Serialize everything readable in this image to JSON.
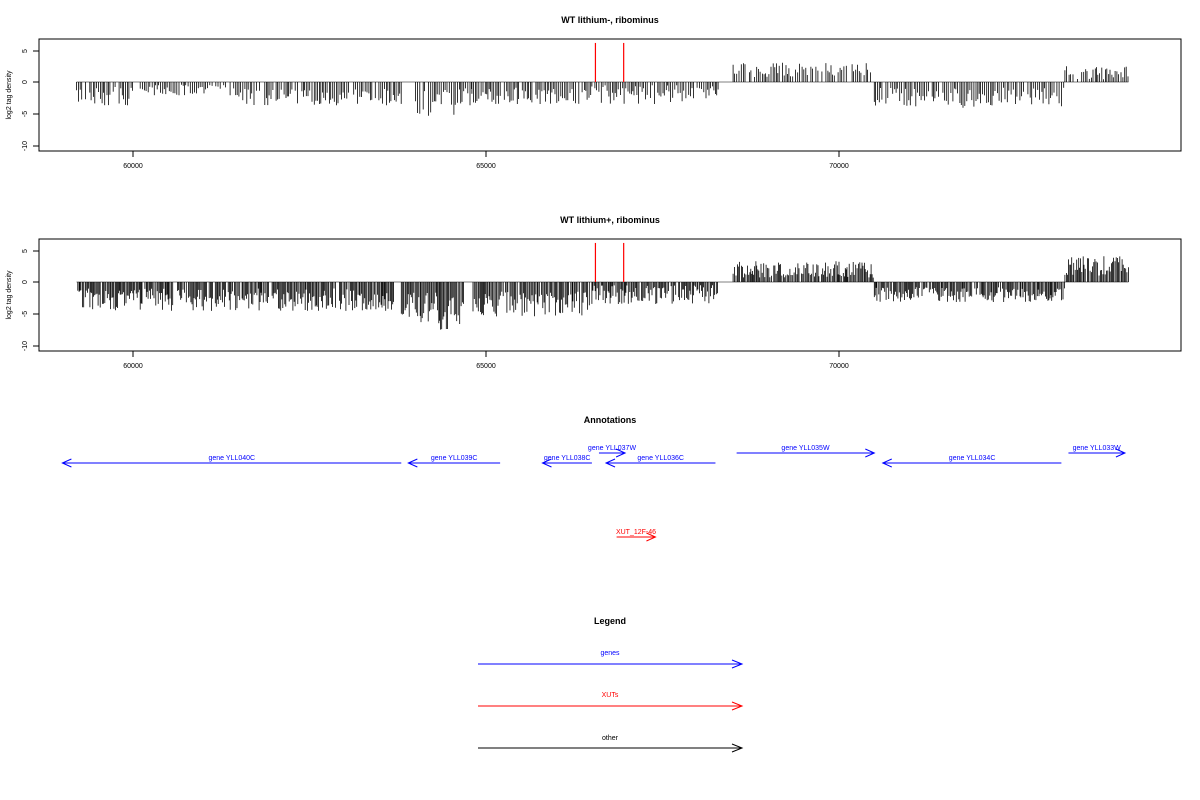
{
  "chart_data": [
    {
      "type": "bar",
      "title": "WT lithium-, ribominus",
      "ylabel": "log2 tag density",
      "xlabel": "",
      "xlim": [
        58500,
        74800
      ],
      "ylim": [
        -11,
        7
      ],
      "x_ticks": [
        60000,
        65000,
        70000
      ],
      "x_tick_labels": [
        "60000",
        "65000",
        "70000"
      ],
      "y_ticks": [
        5,
        0,
        -5,
        -10
      ],
      "y_tick_labels": [
        "5",
        "0",
        "-5",
        "-10"
      ],
      "grid": false,
      "segments": [
        {
          "from": 59200,
          "to": 60000,
          "sign": -1,
          "mean": 2.2,
          "spread": 1.5
        },
        {
          "from": 60000,
          "to": 61500,
          "sign": -1,
          "mean": 1.3,
          "spread": 0.9
        },
        {
          "from": 61500,
          "to": 63800,
          "sign": -1,
          "mean": 2.4,
          "spread": 1.3
        },
        {
          "from": 64000,
          "to": 64800,
          "sign": -1,
          "mean": 3.2,
          "spread": 2.2
        },
        {
          "from": 64800,
          "to": 66500,
          "sign": -1,
          "mean": 2.2,
          "spread": 1.3
        },
        {
          "from": 66500,
          "to": 67800,
          "sign": -1,
          "mean": 2.0,
          "spread": 1.5
        },
        {
          "from": 67800,
          "to": 68300,
          "sign": -1,
          "mean": 1.6,
          "spread": 1.0
        },
        {
          "from": 68500,
          "to": 70500,
          "sign": 1,
          "mean": 2.0,
          "spread": 1.2
        },
        {
          "from": 70500,
          "to": 73200,
          "sign": -1,
          "mean": 2.5,
          "spread": 1.6
        },
        {
          "from": 73200,
          "to": 74100,
          "sign": 1,
          "mean": 1.6,
          "spread": 1.2
        }
      ],
      "highlight_bars": [
        {
          "x": 66550,
          "y": 6.2,
          "color": "#ff0000"
        },
        {
          "x": 66950,
          "y": 6.2,
          "color": "#ff0000"
        }
      ]
    },
    {
      "type": "bar",
      "title": "WT lithium+, ribominus",
      "ylabel": "log2 tag density",
      "xlabel": "",
      "xlim": [
        58500,
        74800
      ],
      "ylim": [
        -11,
        7
      ],
      "x_ticks": [
        60000,
        65000,
        70000
      ],
      "x_tick_labels": [
        "60000",
        "65000",
        "70000"
      ],
      "y_ticks": [
        5,
        0,
        -5,
        -10
      ],
      "y_tick_labels": [
        "5",
        "0",
        "-5",
        "-10"
      ],
      "grid": false,
      "segments": [
        {
          "from": 59200,
          "to": 63700,
          "sign": -1,
          "mean": 2.8,
          "spread": 1.8
        },
        {
          "from": 63800,
          "to": 64300,
          "sign": -1,
          "mean": 4.0,
          "spread": 2.4
        },
        {
          "from": 64300,
          "to": 64700,
          "sign": -1,
          "mean": 5.0,
          "spread": 2.8
        },
        {
          "from": 64800,
          "to": 66500,
          "sign": -1,
          "mean": 3.5,
          "spread": 2.0
        },
        {
          "from": 66500,
          "to": 68300,
          "sign": -1,
          "mean": 2.0,
          "spread": 1.5
        },
        {
          "from": 68500,
          "to": 70500,
          "sign": 1,
          "mean": 2.0,
          "spread": 1.3
        },
        {
          "from": 70500,
          "to": 73200,
          "sign": -1,
          "mean": 2.0,
          "spread": 1.2
        },
        {
          "from": 73200,
          "to": 74100,
          "sign": 1,
          "mean": 2.5,
          "spread": 1.6
        }
      ],
      "highlight_bars": [
        {
          "x": 66550,
          "y": 6.2,
          "color": "#ff0000"
        },
        {
          "x": 66950,
          "y": 6.2,
          "color": "#ff0000"
        }
      ]
    }
  ],
  "annotations": {
    "title": "Annotations",
    "features": [
      {
        "label": "gene YLL040C",
        "start": 59000,
        "end": 63800,
        "strand": "-",
        "kind": "gene",
        "track": 1
      },
      {
        "label": "gene YLL039C",
        "start": 63900,
        "end": 65200,
        "strand": "-",
        "kind": "gene",
        "track": 1
      },
      {
        "label": "gene YLL038C",
        "start": 65800,
        "end": 66500,
        "strand": "-",
        "kind": "gene",
        "track": 1
      },
      {
        "label": "gene YLL037W",
        "start": 66600,
        "end": 66970,
        "strand": "+",
        "kind": "gene",
        "track": 0
      },
      {
        "label": "gene YLL036C",
        "start": 66700,
        "end": 68250,
        "strand": "-",
        "kind": "gene",
        "track": 1
      },
      {
        "label": "gene YLL035W",
        "start": 68550,
        "end": 70500,
        "strand": "+",
        "kind": "gene",
        "track": 0
      },
      {
        "label": "gene YLL034C",
        "start": 70620,
        "end": 73150,
        "strand": "-",
        "kind": "gene",
        "track": 1
      },
      {
        "label": "gene YLL033W",
        "start": 73250,
        "end": 74050,
        "strand": "+",
        "kind": "gene",
        "track": 0
      },
      {
        "label": "XUT_12F-46",
        "start": 66850,
        "end": 67400,
        "strand": "+",
        "kind": "xut",
        "track": 2
      }
    ]
  },
  "legend": {
    "title": "Legend",
    "items": [
      {
        "label": "genes",
        "color": "#0000ff"
      },
      {
        "label": "XUTs",
        "color": "#ff0000"
      },
      {
        "label": "other",
        "color": "#000000"
      }
    ]
  }
}
